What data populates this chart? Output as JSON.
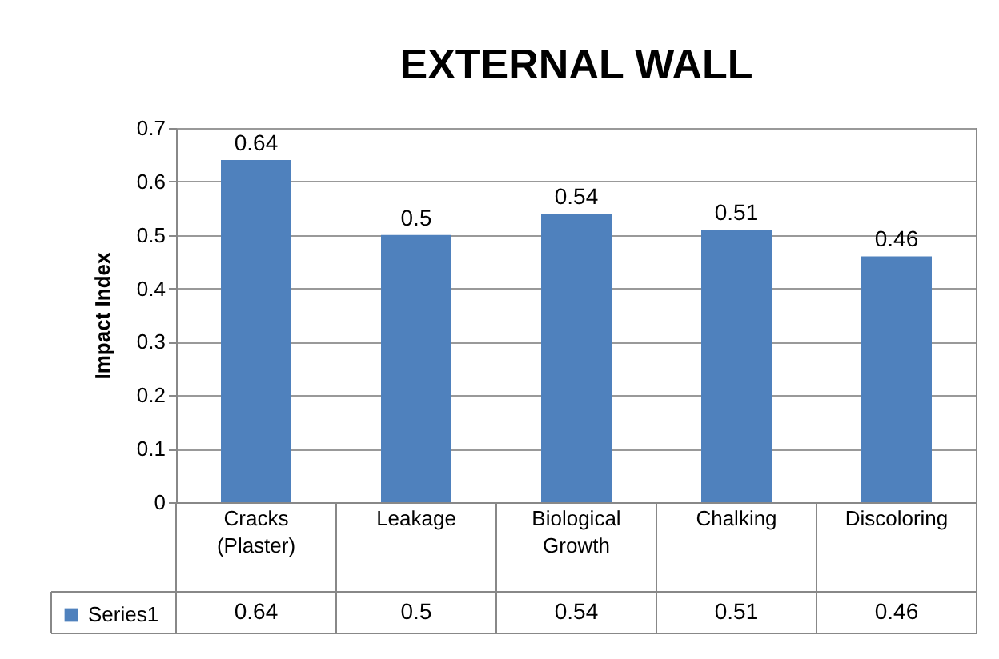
{
  "chart_data": {
    "type": "bar",
    "title": "EXTERNAL WALL",
    "ylabel": "Impact Index",
    "categories": [
      "Cracks (Plaster)",
      "Leakage",
      "Biological Growth",
      "Chalking",
      "Discoloring"
    ],
    "series": [
      {
        "name": "Series1",
        "color": "#4f81bd",
        "values": [
          0.64,
          0.5,
          0.54,
          0.51,
          0.46
        ]
      }
    ],
    "annotations": [
      "0.64",
      "0.5",
      "0.54",
      "0.51",
      "0.46"
    ],
    "ylim": [
      0,
      0.7
    ],
    "yticks": [
      0,
      0.1,
      0.2,
      0.3,
      0.4,
      0.5,
      0.6,
      0.7
    ],
    "grid": "y",
    "data_labels": true,
    "legend": "bottom"
  }
}
